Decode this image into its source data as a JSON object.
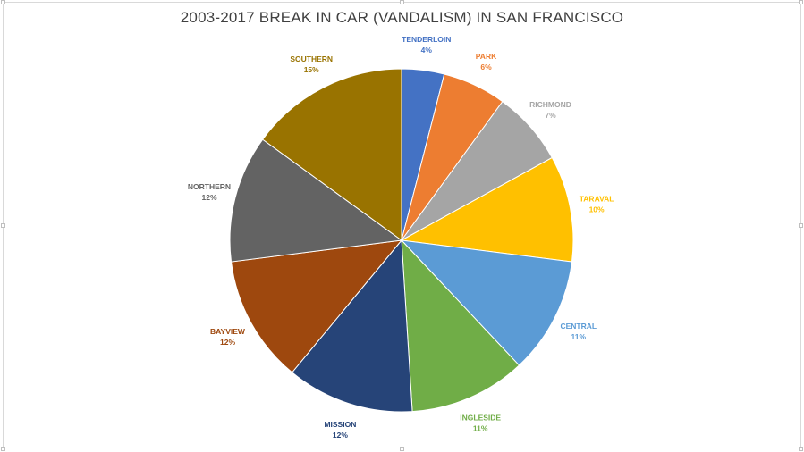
{
  "chart_data": {
    "type": "pie",
    "title": "2003-2017 BREAK IN CAR (VANDALISM) IN SAN FRANCISCO",
    "slices": [
      {
        "label": "TENDERLOIN",
        "value": 4,
        "percent_label": "4%",
        "color": "#4472c4"
      },
      {
        "label": "PARK",
        "value": 6,
        "percent_label": "6%",
        "color": "#ed7d31"
      },
      {
        "label": "RICHMOND",
        "value": 7,
        "percent_label": "7%",
        "color": "#a5a5a5"
      },
      {
        "label": "TARAVAL",
        "value": 10,
        "percent_label": "10%",
        "color": "#ffc000"
      },
      {
        "label": "CENTRAL",
        "value": 11,
        "percent_label": "11%",
        "color": "#5b9bd5"
      },
      {
        "label": "INGLESIDE",
        "value": 11,
        "percent_label": "11%",
        "color": "#70ad47"
      },
      {
        "label": "MISSION",
        "value": 12,
        "percent_label": "12%",
        "color": "#264478"
      },
      {
        "label": "BAYVIEW",
        "value": 12,
        "percent_label": "12%",
        "color": "#9e480e"
      },
      {
        "label": "NORTHERN",
        "value": 12,
        "percent_label": "12%",
        "color": "#636363"
      },
      {
        "label": "SOUTHERN",
        "value": 15,
        "percent_label": "15%",
        "color": "#997300"
      }
    ],
    "start_position": "12 o'clock",
    "direction": "clockwise",
    "labels": "category name and percentage, outside end, colored like slice"
  }
}
